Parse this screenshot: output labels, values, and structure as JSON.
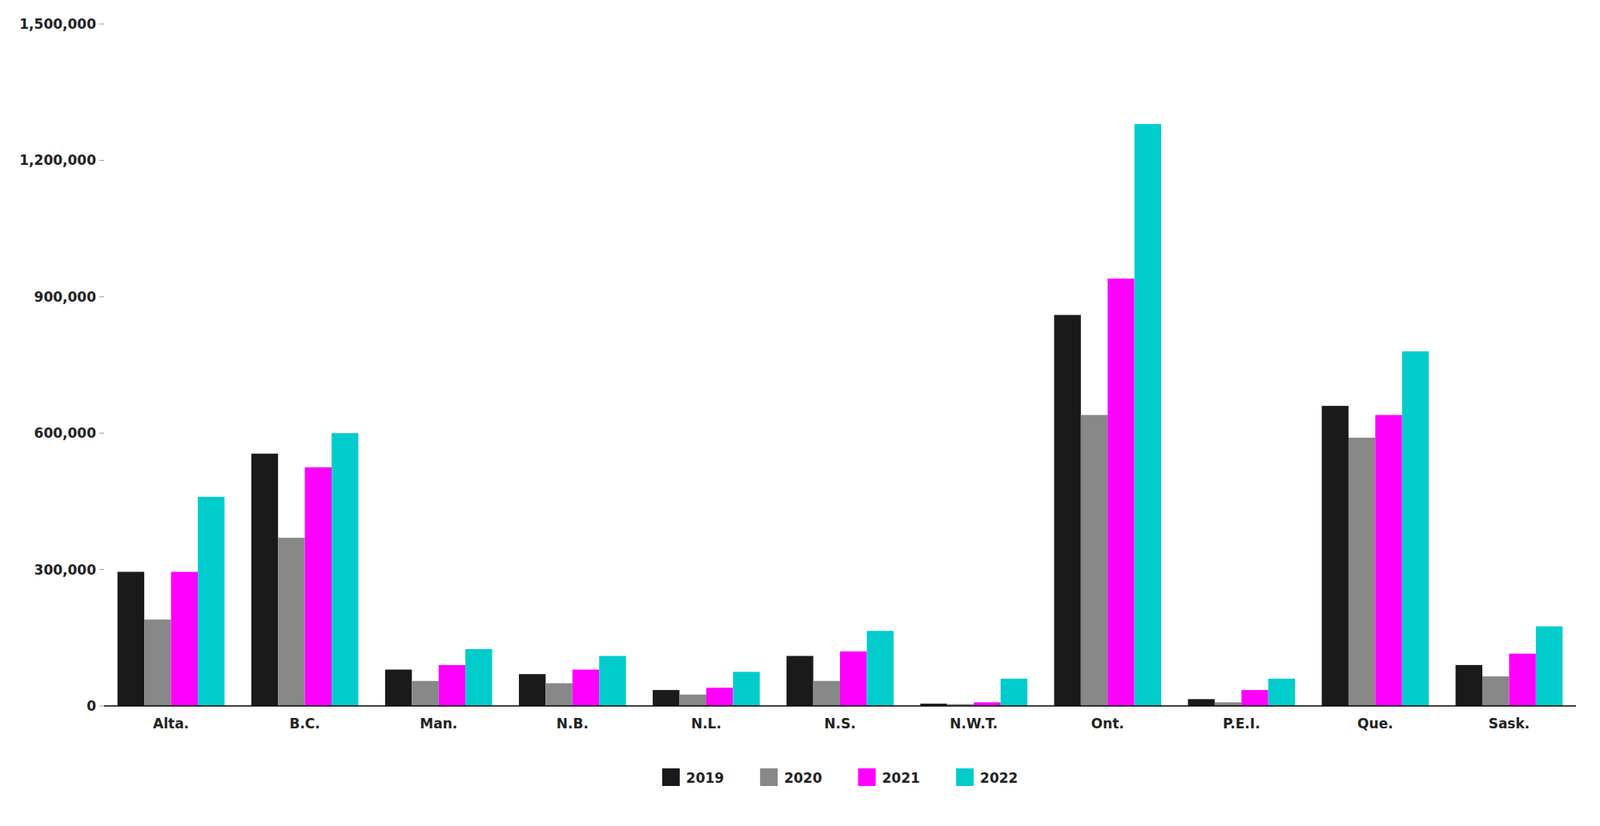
{
  "chart_data": {
    "type": "bar",
    "categories": [
      "Alta.",
      "B.C.",
      "Man.",
      "N.B.",
      "N.L.",
      "N.S.",
      "N.W.T.",
      "Ont.",
      "P.E.I.",
      "Que.",
      "Sask."
    ],
    "series": [
      {
        "name": "2019",
        "color": "#1a1a1a",
        "values": [
          295000,
          555000,
          80000,
          70000,
          35000,
          110000,
          5000,
          860000,
          15000,
          660000,
          90000
        ]
      },
      {
        "name": "2020",
        "color": "#888888",
        "values": [
          190000,
          370000,
          55000,
          50000,
          25000,
          55000,
          4000,
          640000,
          8000,
          590000,
          65000
        ]
      },
      {
        "name": "2021",
        "color": "#FF00FF",
        "values": [
          295000,
          525000,
          90000,
          80000,
          40000,
          120000,
          8000,
          940000,
          35000,
          640000,
          115000
        ]
      },
      {
        "name": "2022",
        "color": "#00CCCC",
        "values": [
          460000,
          600000,
          125000,
          110000,
          75000,
          165000,
          60000,
          1280000,
          60000,
          780000,
          175000
        ]
      }
    ],
    "ylim": [
      0,
      1500000
    ],
    "yticks": [
      0,
      {
        "value": 300000,
        "label": "300,000"
      },
      {
        "value": 600000,
        "label": "600,000"
      },
      {
        "value": 900000,
        "label": "900,000"
      },
      {
        "value": 1200000,
        "label": "1,200,000"
      },
      {
        "value": 1500000,
        "label": "1,500,000"
      }
    ],
    "grid": false,
    "legend": "bottom"
  }
}
